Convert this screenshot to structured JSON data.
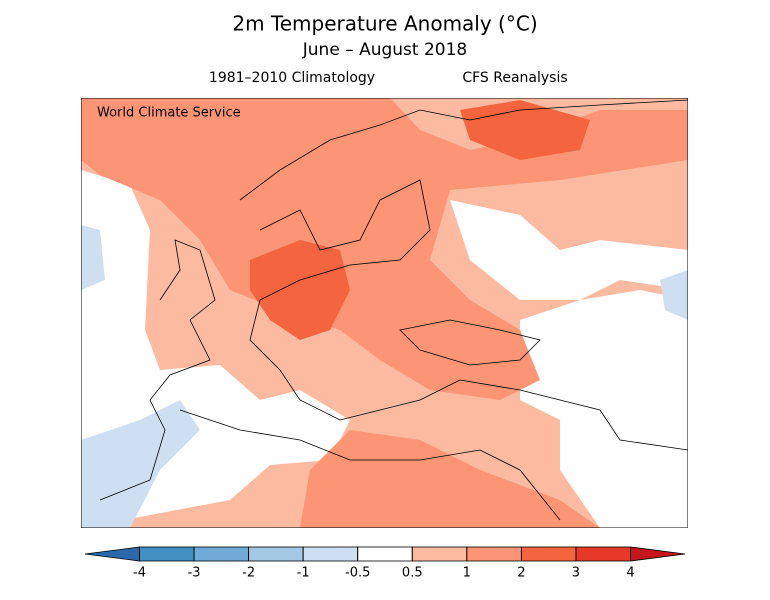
{
  "title": "2m Temperature Anomaly (°C)",
  "subtitle": "June – August 2018",
  "left_label": "1981–2010 Climatology",
  "right_label": "CFS Reanalysis",
  "watermark": "World Climate Service",
  "colorbar": {
    "ticks": [
      -4,
      -3,
      -2,
      -1,
      -0.5,
      0.5,
      1,
      2,
      3,
      4
    ],
    "colors": [
      "#2a6aab",
      "#4391c2",
      "#6fabd6",
      "#a3c8e4",
      "#cddff0",
      "#ffffff",
      "#fcbaa0",
      "#fb9575",
      "#f4643f",
      "#e6392a",
      "#c4161c"
    ]
  }
}
